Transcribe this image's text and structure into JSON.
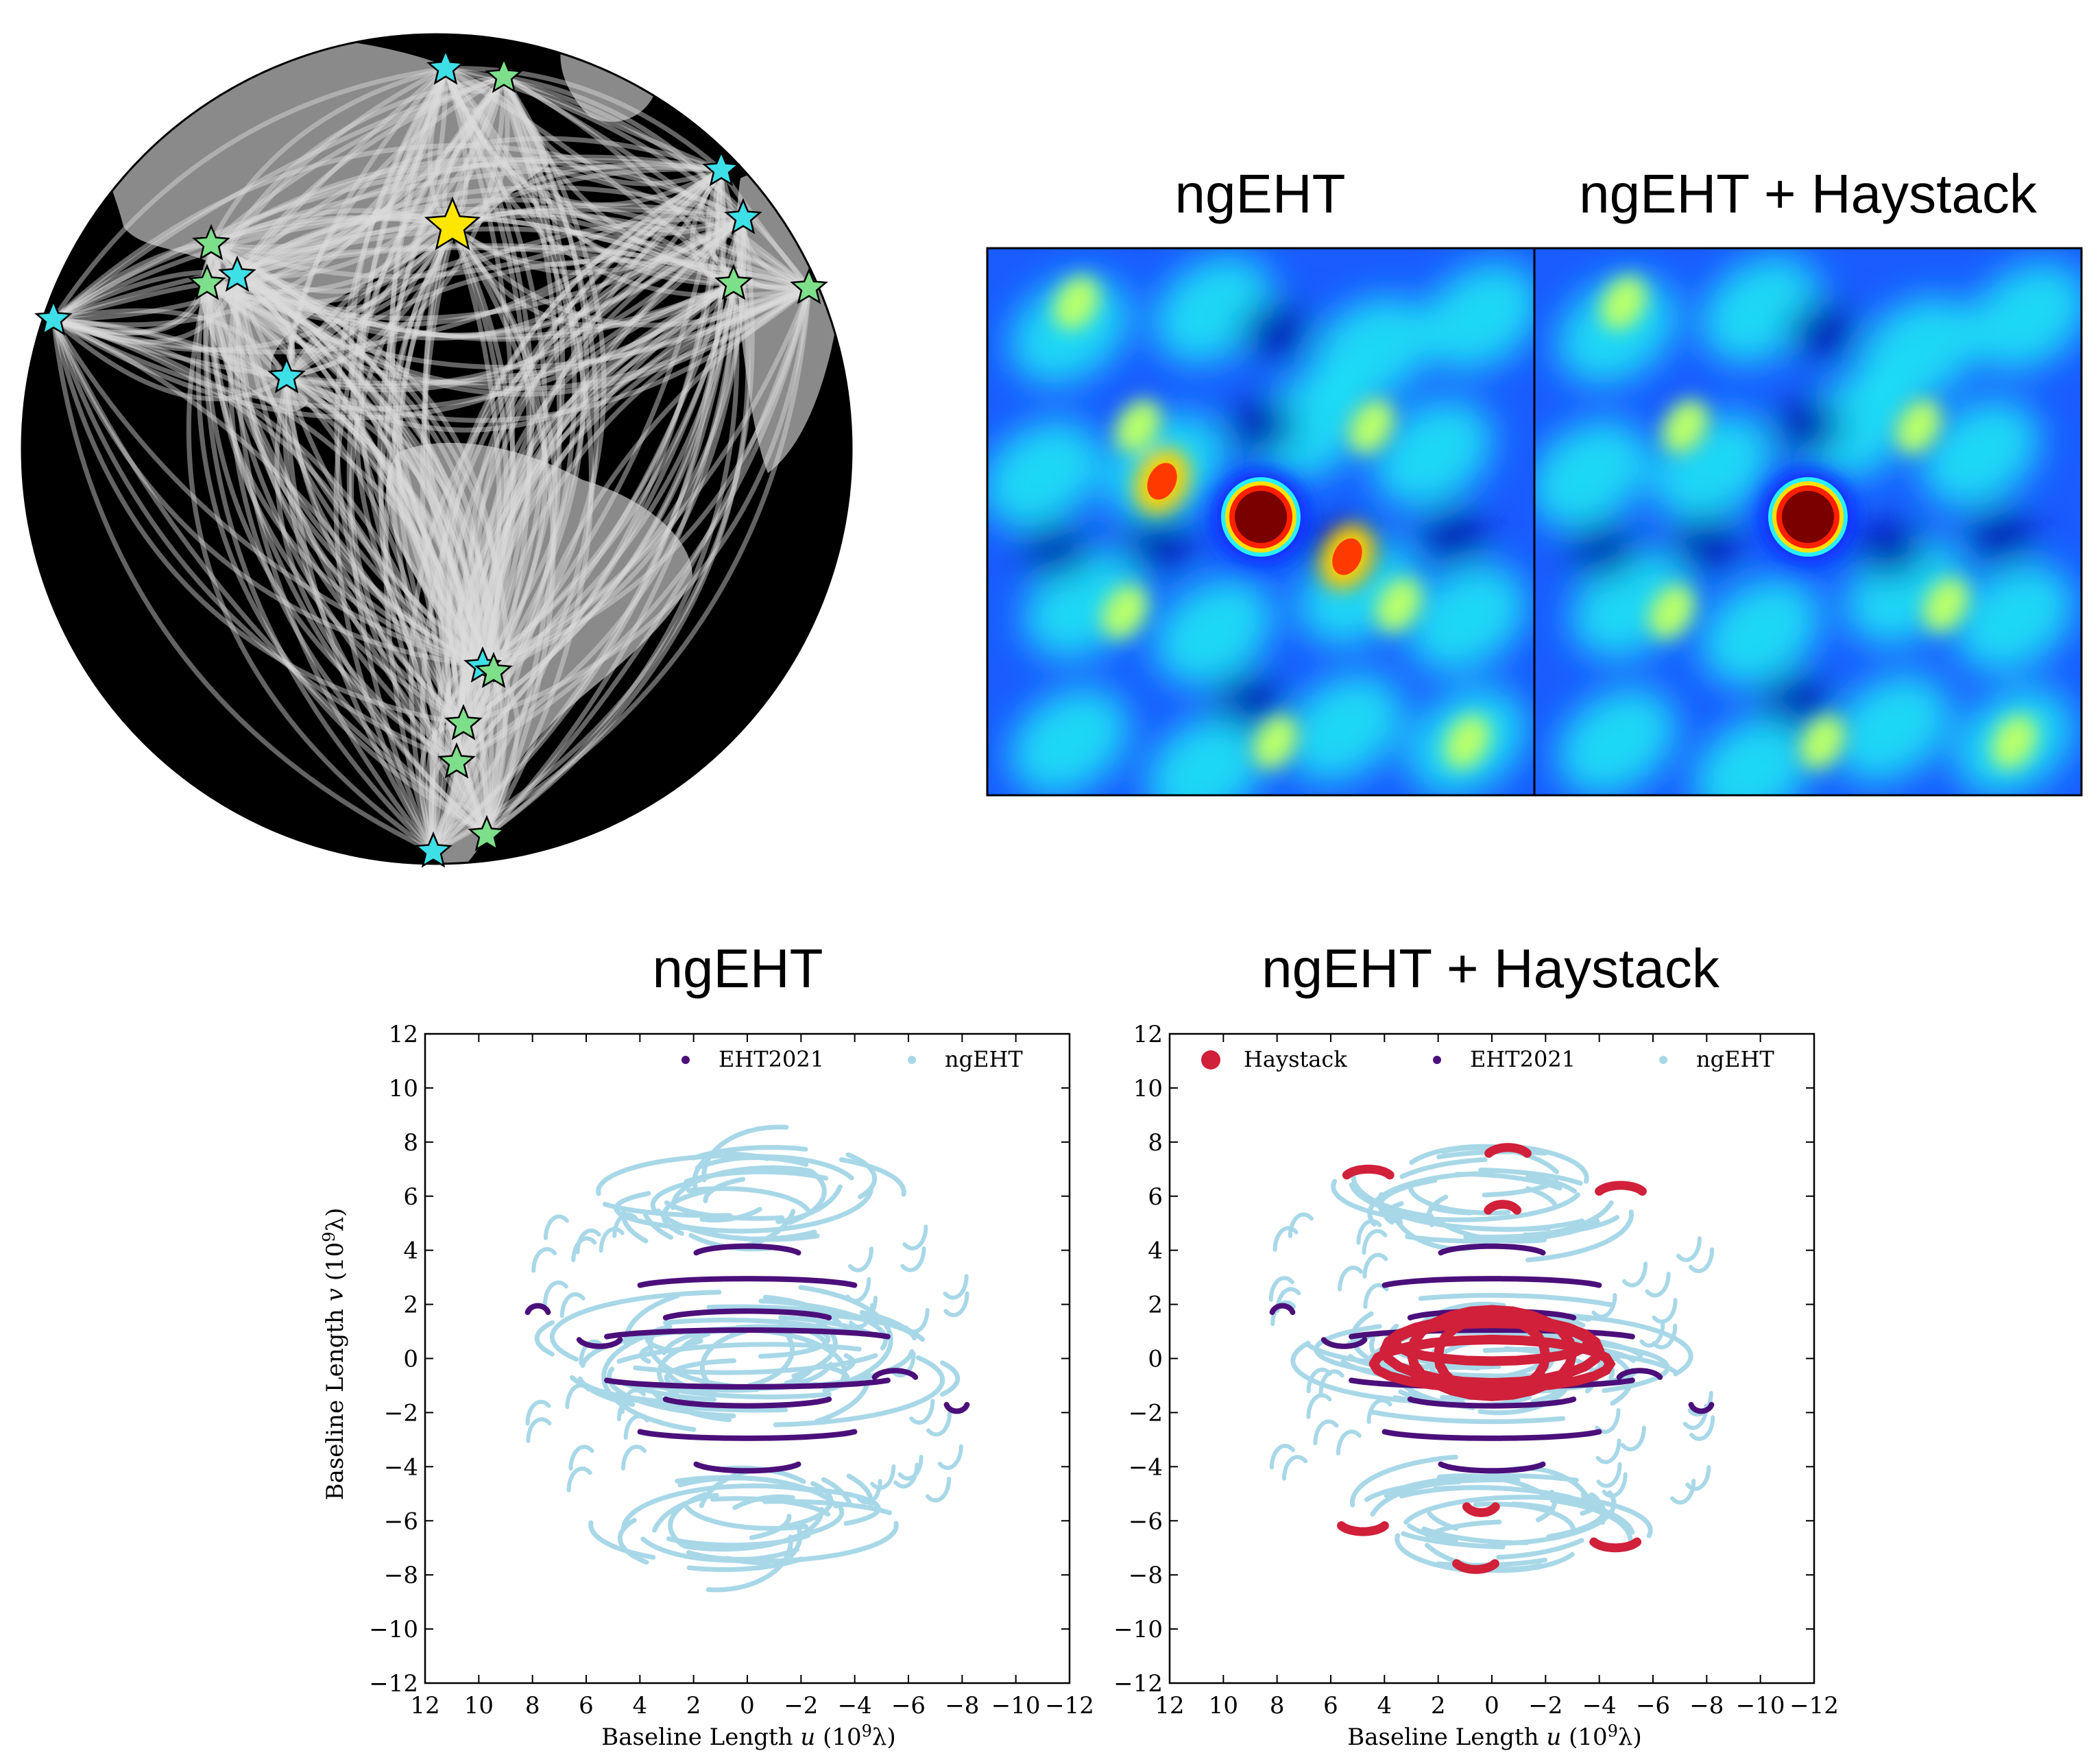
{
  "colors": {
    "globe_ocean": "#000000",
    "globe_land": "#8a8a8a",
    "baseline_arcs": "#dcdcdc",
    "star_existing": "#3ee0e8",
    "star_new": "#7ddf8a",
    "star_haystack": "#ffe600",
    "eht2021": "#4b0f7a",
    "ngeht": "#a8d8e8",
    "haystack": "#d0203a"
  },
  "globe": {
    "stars": [
      {
        "kind": "existing"
      },
      {
        "kind": "new"
      },
      {
        "kind": "haystack"
      },
      {
        "kind": "new"
      },
      {
        "kind": "new"
      },
      {
        "kind": "existing"
      },
      {
        "kind": "existing"
      },
      {
        "kind": "existing"
      },
      {
        "kind": "existing"
      },
      {
        "kind": "existing"
      },
      {
        "kind": "new"
      },
      {
        "kind": "new"
      },
      {
        "kind": "existing"
      },
      {
        "kind": "new"
      },
      {
        "kind": "new"
      },
      {
        "kind": "new"
      },
      {
        "kind": "new"
      },
      {
        "kind": "existing"
      }
    ]
  },
  "images": {
    "left_title": "ngEHT",
    "right_title": "ngEHT + Haystack",
    "colormap": "jet"
  },
  "chart_data": [
    {
      "type": "scatter",
      "title": "ngEHT",
      "xlabel": "Baseline Length u (10^9 λ)",
      "ylabel": "Baseline Length v (10^9 λ)",
      "xlim": [
        12,
        -12
      ],
      "ylim": [
        -12,
        12
      ],
      "xticks": [
        "12",
        "10",
        "8",
        "6",
        "4",
        "2",
        "0",
        "−2",
        "−4",
        "−6",
        "−8",
        "−10",
        "−12"
      ],
      "yticks": [
        "12",
        "10",
        "8",
        "6",
        "4",
        "2",
        "0",
        "−2",
        "−4",
        "−6",
        "−8",
        "−10",
        "−12"
      ],
      "grid": false,
      "legend_position": "top-right",
      "series": [
        {
          "name": "EHT2021",
          "color": "#4b0f7a"
        },
        {
          "name": "ngEHT",
          "color": "#a8d8e8"
        }
      ]
    },
    {
      "type": "scatter",
      "title": "ngEHT + Haystack",
      "xlabel": "Baseline Length u (10^9 λ)",
      "ylabel": "",
      "xlim": [
        12,
        -12
      ],
      "ylim": [
        -12,
        12
      ],
      "xticks": [
        "12",
        "10",
        "8",
        "6",
        "4",
        "2",
        "0",
        "−2",
        "−4",
        "−6",
        "−8",
        "−10",
        "−12"
      ],
      "yticks": [
        "12",
        "10",
        "8",
        "6",
        "4",
        "2",
        "0",
        "−2",
        "−4",
        "−6",
        "−8",
        "−10",
        "−12"
      ],
      "grid": false,
      "legend_position": "top",
      "series": [
        {
          "name": "Haystack",
          "color": "#d0203a"
        },
        {
          "name": "EHT2021",
          "color": "#4b0f7a"
        },
        {
          "name": "ngEHT",
          "color": "#a8d8e8"
        }
      ]
    }
  ]
}
